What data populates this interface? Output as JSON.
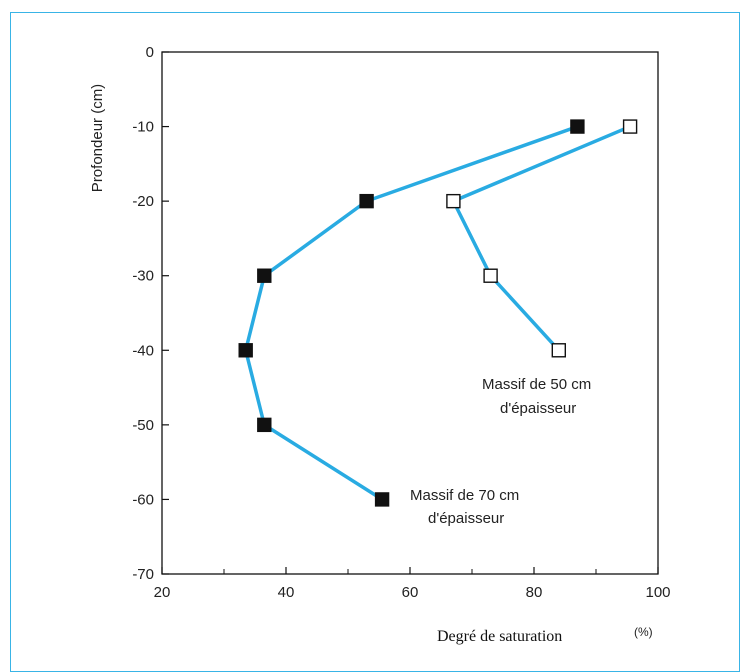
{
  "chart_data": {
    "type": "line",
    "xlabel": "Degré de saturation",
    "xunit": "(%)",
    "ylabel": "Profondeur (cm)",
    "xlim": [
      20,
      100
    ],
    "ylim": [
      -70,
      0
    ],
    "xticks": [
      20,
      40,
      60,
      80,
      100
    ],
    "yticks": [
      0,
      -10,
      -20,
      -30,
      -40,
      -50,
      -60,
      -70
    ],
    "grid": false,
    "line_color": "#29abe2",
    "series": [
      {
        "name": "Massif de 70 cm d'épaisseur",
        "label_lines": [
          "Massif de 70 cm",
          "d'épaisseur"
        ],
        "marker": "filled-square",
        "points": [
          {
            "x": 87,
            "y": -10
          },
          {
            "x": 53,
            "y": -20
          },
          {
            "x": 36.5,
            "y": -30
          },
          {
            "x": 33.5,
            "y": -40
          },
          {
            "x": 36.5,
            "y": -50
          },
          {
            "x": 55.5,
            "y": -60
          }
        ]
      },
      {
        "name": "Massif de 50 cm d'épaisseur",
        "label_lines": [
          "Massif de 50 cm",
          "d'épaisseur"
        ],
        "marker": "open-square",
        "points": [
          {
            "x": 95.5,
            "y": -10
          },
          {
            "x": 67,
            "y": -20
          },
          {
            "x": 73,
            "y": -30
          },
          {
            "x": 84,
            "y": -40
          }
        ]
      }
    ]
  }
}
